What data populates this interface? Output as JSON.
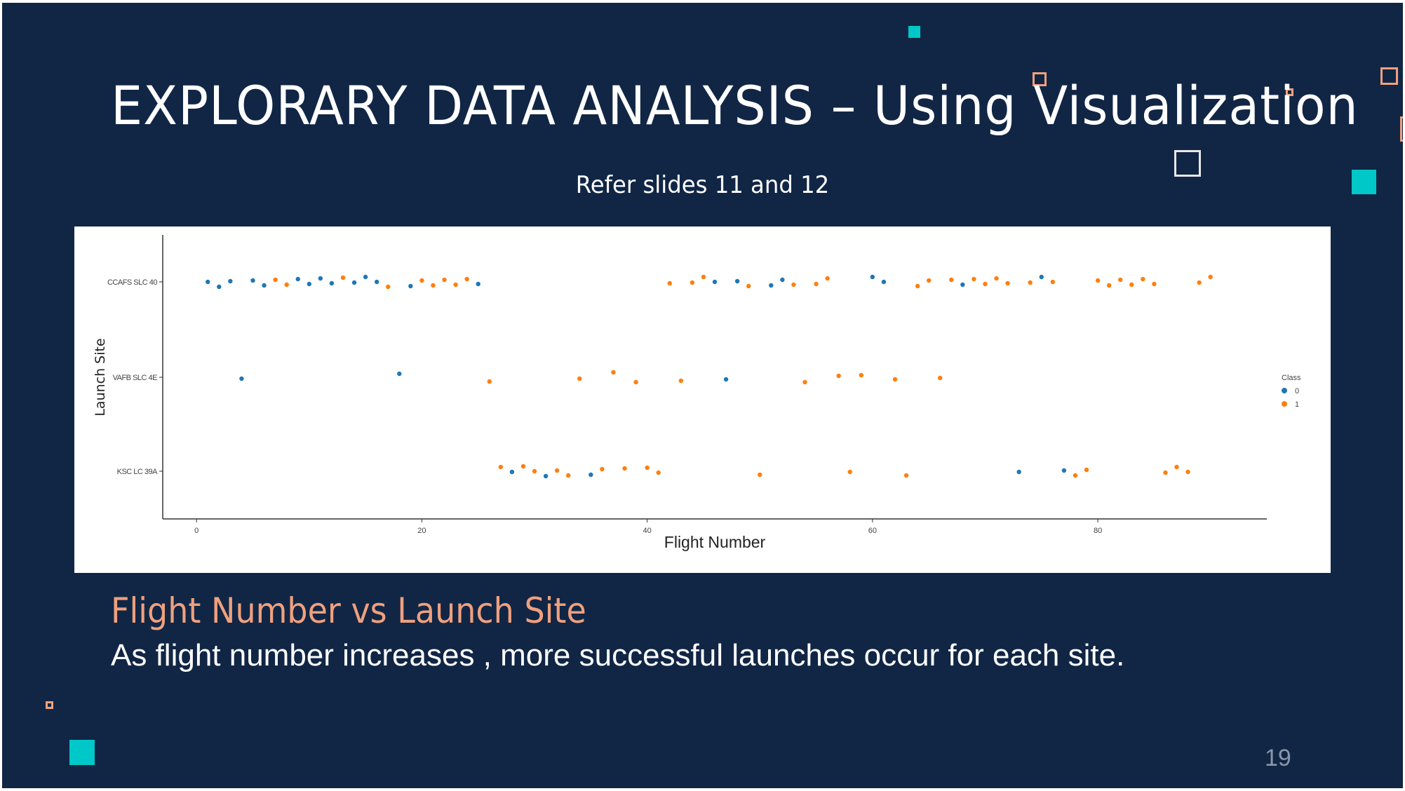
{
  "slide": {
    "title": "EXPLORARY DATA ANALYSIS – Using Visualization",
    "subtitle": "Refer slides 11 and 12",
    "caption_title": "Flight Number vs Launch Site",
    "caption_body": "As flight number increases ,  more successful launches occur for each site.",
    "page_number": "19",
    "colors": {
      "background": "#112645",
      "accent_teal": "#00c8c8",
      "accent_peach": "#f0a07e"
    }
  },
  "chart_data": {
    "type": "scatter",
    "xlabel": "Flight Number",
    "ylabel": "Launch Site",
    "categories": [
      "CCAFS SLC 40",
      "VAFB SLC 4E",
      "KSC LC 39A"
    ],
    "xlim": [
      -3,
      95
    ],
    "xticks": [
      0,
      20,
      40,
      60,
      80
    ],
    "grid": false,
    "legend": {
      "title": "Class",
      "placement": "right",
      "entries": [
        "0",
        "1"
      ]
    },
    "series": [
      {
        "name": "0",
        "color": "#1f77b4",
        "points": [
          {
            "x": 1,
            "y": "CCAFS SLC 40"
          },
          {
            "x": 2,
            "y": "CCAFS SLC 40"
          },
          {
            "x": 3,
            "y": "CCAFS SLC 40"
          },
          {
            "x": 4,
            "y": "VAFB SLC 4E"
          },
          {
            "x": 5,
            "y": "CCAFS SLC 40"
          },
          {
            "x": 6,
            "y": "CCAFS SLC 40"
          },
          {
            "x": 9,
            "y": "CCAFS SLC 40"
          },
          {
            "x": 10,
            "y": "CCAFS SLC 40"
          },
          {
            "x": 11,
            "y": "CCAFS SLC 40"
          },
          {
            "x": 12,
            "y": "CCAFS SLC 40"
          },
          {
            "x": 14,
            "y": "CCAFS SLC 40"
          },
          {
            "x": 15,
            "y": "CCAFS SLC 40"
          },
          {
            "x": 16,
            "y": "CCAFS SLC 40"
          },
          {
            "x": 18,
            "y": "VAFB SLC 4E"
          },
          {
            "x": 19,
            "y": "CCAFS SLC 40"
          },
          {
            "x": 25,
            "y": "CCAFS SLC 40"
          },
          {
            "x": 28,
            "y": "KSC LC 39A"
          },
          {
            "x": 31,
            "y": "KSC LC 39A"
          },
          {
            "x": 35,
            "y": "KSC LC 39A"
          },
          {
            "x": 46,
            "y": "CCAFS SLC 40"
          },
          {
            "x": 47,
            "y": "VAFB SLC 4E"
          },
          {
            "x": 48,
            "y": "CCAFS SLC 40"
          },
          {
            "x": 51,
            "y": "CCAFS SLC 40"
          },
          {
            "x": 52,
            "y": "CCAFS SLC 40"
          },
          {
            "x": 60,
            "y": "CCAFS SLC 40"
          },
          {
            "x": 61,
            "y": "CCAFS SLC 40"
          },
          {
            "x": 68,
            "y": "CCAFS SLC 40"
          },
          {
            "x": 73,
            "y": "KSC LC 39A"
          },
          {
            "x": 75,
            "y": "CCAFS SLC 40"
          },
          {
            "x": 77,
            "y": "KSC LC 39A"
          }
        ]
      },
      {
        "name": "1",
        "color": "#ff7f0e",
        "points": [
          {
            "x": 7,
            "y": "CCAFS SLC 40"
          },
          {
            "x": 8,
            "y": "CCAFS SLC 40"
          },
          {
            "x": 13,
            "y": "CCAFS SLC 40"
          },
          {
            "x": 17,
            "y": "CCAFS SLC 40"
          },
          {
            "x": 20,
            "y": "CCAFS SLC 40"
          },
          {
            "x": 21,
            "y": "CCAFS SLC 40"
          },
          {
            "x": 22,
            "y": "CCAFS SLC 40"
          },
          {
            "x": 23,
            "y": "CCAFS SLC 40"
          },
          {
            "x": 24,
            "y": "CCAFS SLC 40"
          },
          {
            "x": 26,
            "y": "VAFB SLC 4E"
          },
          {
            "x": 27,
            "y": "KSC LC 39A"
          },
          {
            "x": 29,
            "y": "KSC LC 39A"
          },
          {
            "x": 30,
            "y": "KSC LC 39A"
          },
          {
            "x": 32,
            "y": "KSC LC 39A"
          },
          {
            "x": 33,
            "y": "KSC LC 39A"
          },
          {
            "x": 34,
            "y": "VAFB SLC 4E"
          },
          {
            "x": 36,
            "y": "KSC LC 39A"
          },
          {
            "x": 37,
            "y": "VAFB SLC 4E"
          },
          {
            "x": 38,
            "y": "KSC LC 39A"
          },
          {
            "x": 39,
            "y": "VAFB SLC 4E"
          },
          {
            "x": 40,
            "y": "KSC LC 39A"
          },
          {
            "x": 41,
            "y": "KSC LC 39A"
          },
          {
            "x": 42,
            "y": "CCAFS SLC 40"
          },
          {
            "x": 43,
            "y": "VAFB SLC 4E"
          },
          {
            "x": 44,
            "y": "CCAFS SLC 40"
          },
          {
            "x": 45,
            "y": "CCAFS SLC 40"
          },
          {
            "x": 49,
            "y": "CCAFS SLC 40"
          },
          {
            "x": 50,
            "y": "KSC LC 39A"
          },
          {
            "x": 53,
            "y": "CCAFS SLC 40"
          },
          {
            "x": 54,
            "y": "VAFB SLC 4E"
          },
          {
            "x": 55,
            "y": "CCAFS SLC 40"
          },
          {
            "x": 56,
            "y": "CCAFS SLC 40"
          },
          {
            "x": 57,
            "y": "VAFB SLC 4E"
          },
          {
            "x": 58,
            "y": "KSC LC 39A"
          },
          {
            "x": 59,
            "y": "VAFB SLC 4E"
          },
          {
            "x": 62,
            "y": "VAFB SLC 4E"
          },
          {
            "x": 63,
            "y": "KSC LC 39A"
          },
          {
            "x": 64,
            "y": "CCAFS SLC 40"
          },
          {
            "x": 65,
            "y": "CCAFS SLC 40"
          },
          {
            "x": 66,
            "y": "VAFB SLC 4E"
          },
          {
            "x": 67,
            "y": "CCAFS SLC 40"
          },
          {
            "x": 69,
            "y": "CCAFS SLC 40"
          },
          {
            "x": 70,
            "y": "CCAFS SLC 40"
          },
          {
            "x": 71,
            "y": "CCAFS SLC 40"
          },
          {
            "x": 72,
            "y": "CCAFS SLC 40"
          },
          {
            "x": 74,
            "y": "CCAFS SLC 40"
          },
          {
            "x": 76,
            "y": "CCAFS SLC 40"
          },
          {
            "x": 78,
            "y": "KSC LC 39A"
          },
          {
            "x": 79,
            "y": "KSC LC 39A"
          },
          {
            "x": 80,
            "y": "CCAFS SLC 40"
          },
          {
            "x": 81,
            "y": "CCAFS SLC 40"
          },
          {
            "x": 82,
            "y": "CCAFS SLC 40"
          },
          {
            "x": 83,
            "y": "CCAFS SLC 40"
          },
          {
            "x": 84,
            "y": "CCAFS SLC 40"
          },
          {
            "x": 85,
            "y": "CCAFS SLC 40"
          },
          {
            "x": 86,
            "y": "KSC LC 39A"
          },
          {
            "x": 87,
            "y": "KSC LC 39A"
          },
          {
            "x": 88,
            "y": "KSC LC 39A"
          },
          {
            "x": 89,
            "y": "CCAFS SLC 40"
          },
          {
            "x": 90,
            "y": "CCAFS SLC 40"
          }
        ]
      }
    ]
  }
}
